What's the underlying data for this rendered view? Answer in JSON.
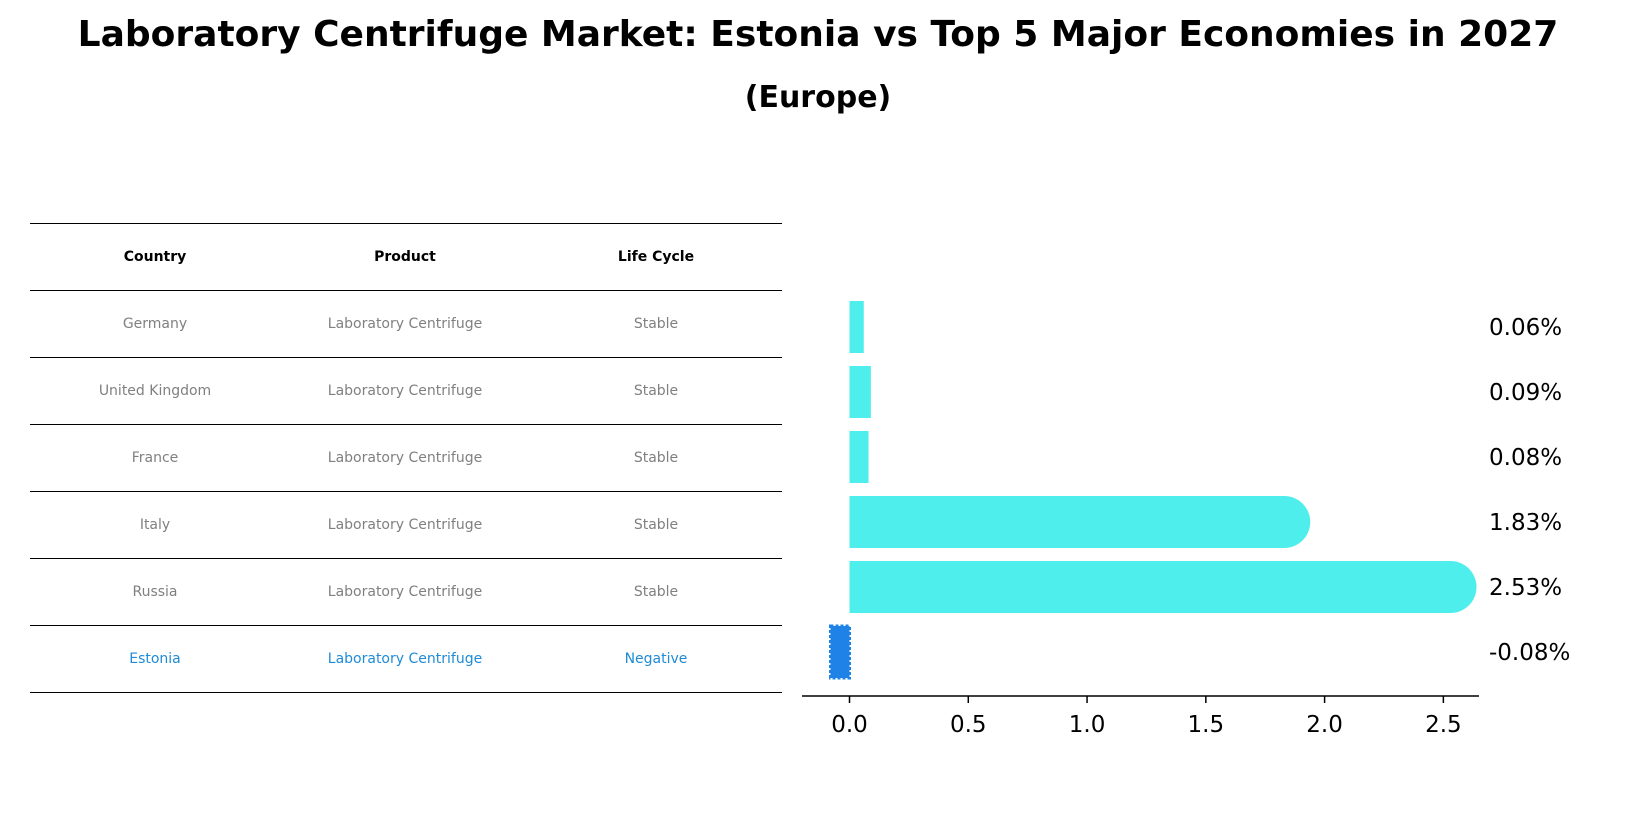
{
  "title": "Laboratory Centrifuge Market: Estonia vs Top 5 Major Economies in 2027",
  "subtitle": "(Europe)",
  "table": {
    "headers": [
      "Country",
      "Product",
      "Life Cycle"
    ],
    "rows": [
      [
        "Germany",
        "Laboratory Centrifuge",
        "Stable"
      ],
      [
        "United Kingdom",
        "Laboratory Centrifuge",
        "Stable"
      ],
      [
        "France",
        "Laboratory Centrifuge",
        "Stable"
      ],
      [
        "Italy",
        "Laboratory Centrifuge",
        "Stable"
      ],
      [
        "Russia",
        "Laboratory Centrifuge",
        "Stable"
      ],
      [
        "Estonia",
        "Laboratory Centrifuge",
        "Negative"
      ]
    ]
  },
  "chart_data": {
    "type": "bar",
    "orientation": "horizontal",
    "categories": [
      "Germany",
      "United Kingdom",
      "France",
      "Italy",
      "Russia",
      "Estonia"
    ],
    "values": [
      0.06,
      0.09,
      0.08,
      1.83,
      2.53,
      -0.08
    ],
    "value_labels": [
      "0.06%",
      "0.09%",
      "0.08%",
      "1.83%",
      "2.53%",
      "-0.08%"
    ],
    "xlim": [
      -0.2,
      2.65
    ],
    "xticks": [
      0.0,
      0.5,
      1.0,
      1.5,
      2.0,
      2.5
    ],
    "xtick_labels": [
      "0.0",
      "0.5",
      "1.0",
      "1.5",
      "2.0",
      "2.5"
    ],
    "colors": {
      "default": "#4eeeec",
      "highlight": "#1e82e6"
    },
    "highlight_category": "Estonia"
  }
}
